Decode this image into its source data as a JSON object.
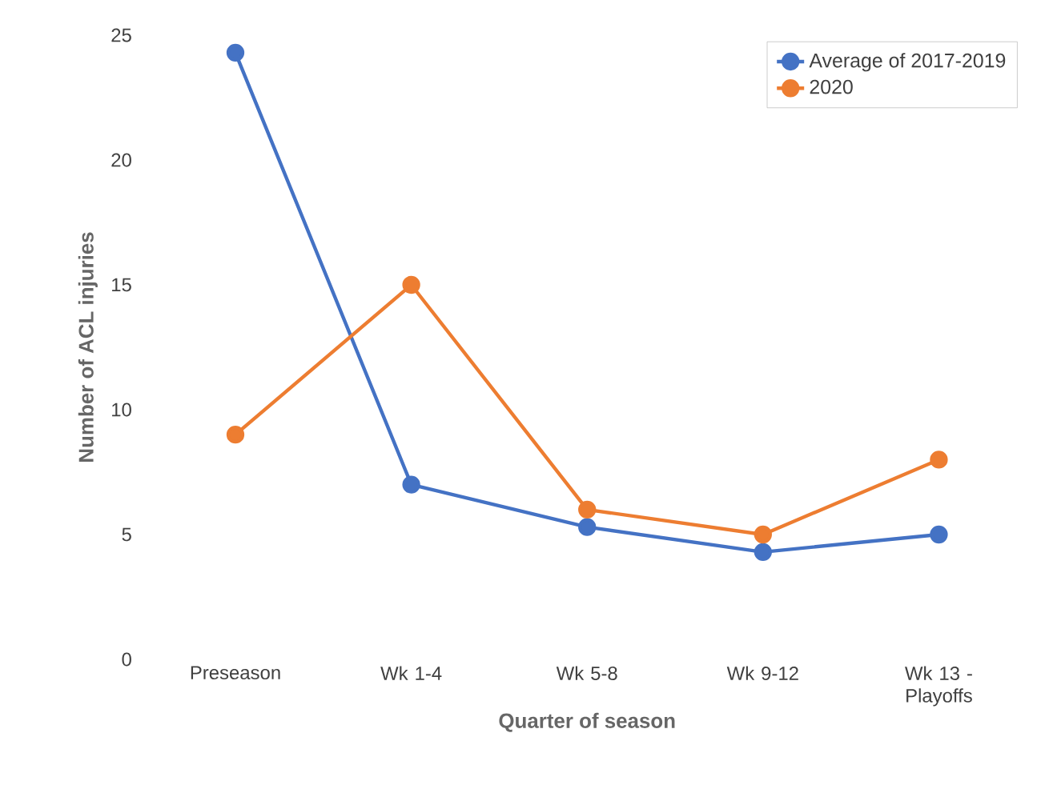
{
  "chart_data": {
    "type": "line",
    "xlabel": "Quarter of season",
    "ylabel": "Number of ACL injuries",
    "categories": [
      "Preseason",
      "Wk 1-4",
      "Wk 5-8",
      "Wk 9-12",
      "Wk 13 - Playoffs"
    ],
    "series": [
      {
        "name": "Average of 2017-2019",
        "color": "#4472c4",
        "values": [
          24.3,
          7,
          5.3,
          4.3,
          5
        ]
      },
      {
        "name": "2020",
        "color": "#ed7d31",
        "values": [
          9,
          15,
          6,
          5,
          8
        ]
      }
    ],
    "ylim": [
      0,
      25
    ],
    "yticks": [
      0,
      5,
      10,
      15,
      20,
      25
    ],
    "grid": false,
    "legend": "top right",
    "marker": "circle",
    "line_style": "solid"
  }
}
